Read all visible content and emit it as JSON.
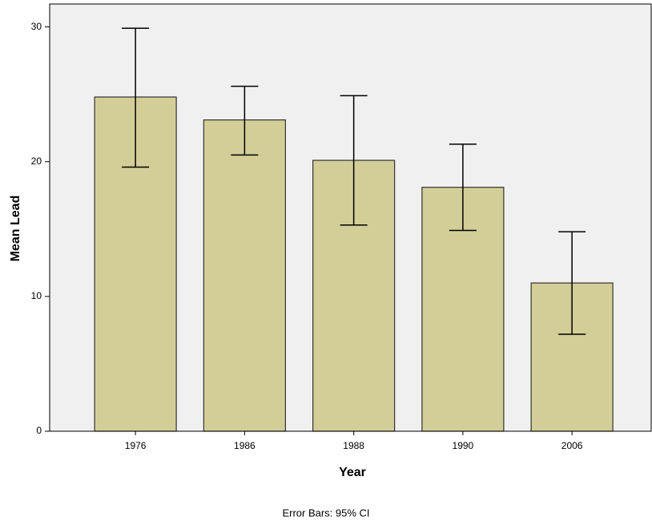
{
  "chart_data": {
    "type": "bar",
    "x_label": "Year",
    "y_label": "Mean Lead",
    "note": "Error Bars: 95% CI",
    "categories": [
      "1976",
      "1986",
      "1988",
      "1990",
      "2006"
    ],
    "values": [
      24.8,
      23.1,
      20.1,
      18.1,
      11.0
    ],
    "ci_lower": [
      19.6,
      20.5,
      15.3,
      14.9,
      7.2
    ],
    "ci_upper": [
      29.9,
      25.6,
      24.9,
      21.3,
      14.8
    ],
    "color": "#d3ce97",
    "ylim": [
      0,
      31.7
    ],
    "yticks": [
      0,
      10,
      20,
      30
    ]
  }
}
